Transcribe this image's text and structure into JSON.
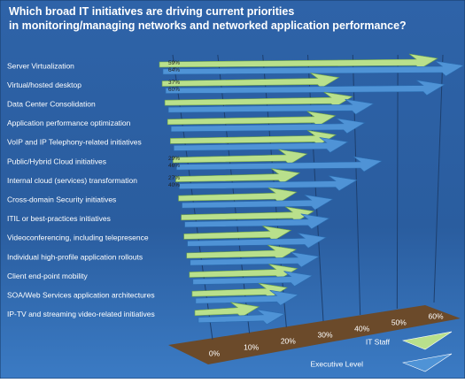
{
  "chart_data": {
    "type": "bar",
    "title": "Which broad IT initiatives are driving current priorities in monitoring/managing networks and networked application performance?",
    "categories": [
      "Server Virtualization",
      "Virtual/hosted desktop",
      "Data Center Consolidation",
      "Application performance optimization",
      "VoIP and IP Telephony-related initiatives",
      "Public/Hybrid Cloud initiatives",
      "Internal cloud (services) transformation",
      "Cross-domain Security initiatives",
      "ITIL or best-practices initiatives",
      "Videoconferencing, including telepresence",
      "Individual high-profile application rollouts",
      "Client end-point mobility",
      "SOA/Web Services application architectures",
      "IP-TV and streaming video-related initiatives"
    ],
    "series": [
      {
        "name": "IT Staff",
        "color": "#b9e08c",
        "values": [
          59,
          37,
          40,
          36,
          36,
          29,
          27,
          26,
          30,
          24,
          25,
          25,
          22,
          14
        ],
        "value_labels": [
          "59%",
          "37%",
          null,
          null,
          null,
          "29%",
          "27%",
          null,
          null,
          null,
          null,
          null,
          null,
          null
        ]
      },
      {
        "name": "Executive Level",
        "color": "#4f93d6",
        "values": [
          64,
          60,
          44,
          42,
          38,
          46,
          40,
          34,
          33,
          32,
          30,
          28,
          24,
          20
        ],
        "value_labels": [
          "64%",
          "60%",
          null,
          null,
          null,
          "46%",
          "40%",
          null,
          null,
          null,
          null,
          null,
          null,
          null
        ]
      }
    ],
    "xlim": [
      0,
      60
    ],
    "xticks": [
      {
        "value": 0,
        "label": "0%"
      },
      {
        "value": 10,
        "label": "10%"
      },
      {
        "value": 20,
        "label": "20%"
      },
      {
        "value": 30,
        "label": "30%"
      },
      {
        "value": 40,
        "label": "40%"
      },
      {
        "value": 50,
        "label": "50%"
      },
      {
        "value": 60,
        "label": "60%"
      }
    ],
    "grid": true
  }
}
